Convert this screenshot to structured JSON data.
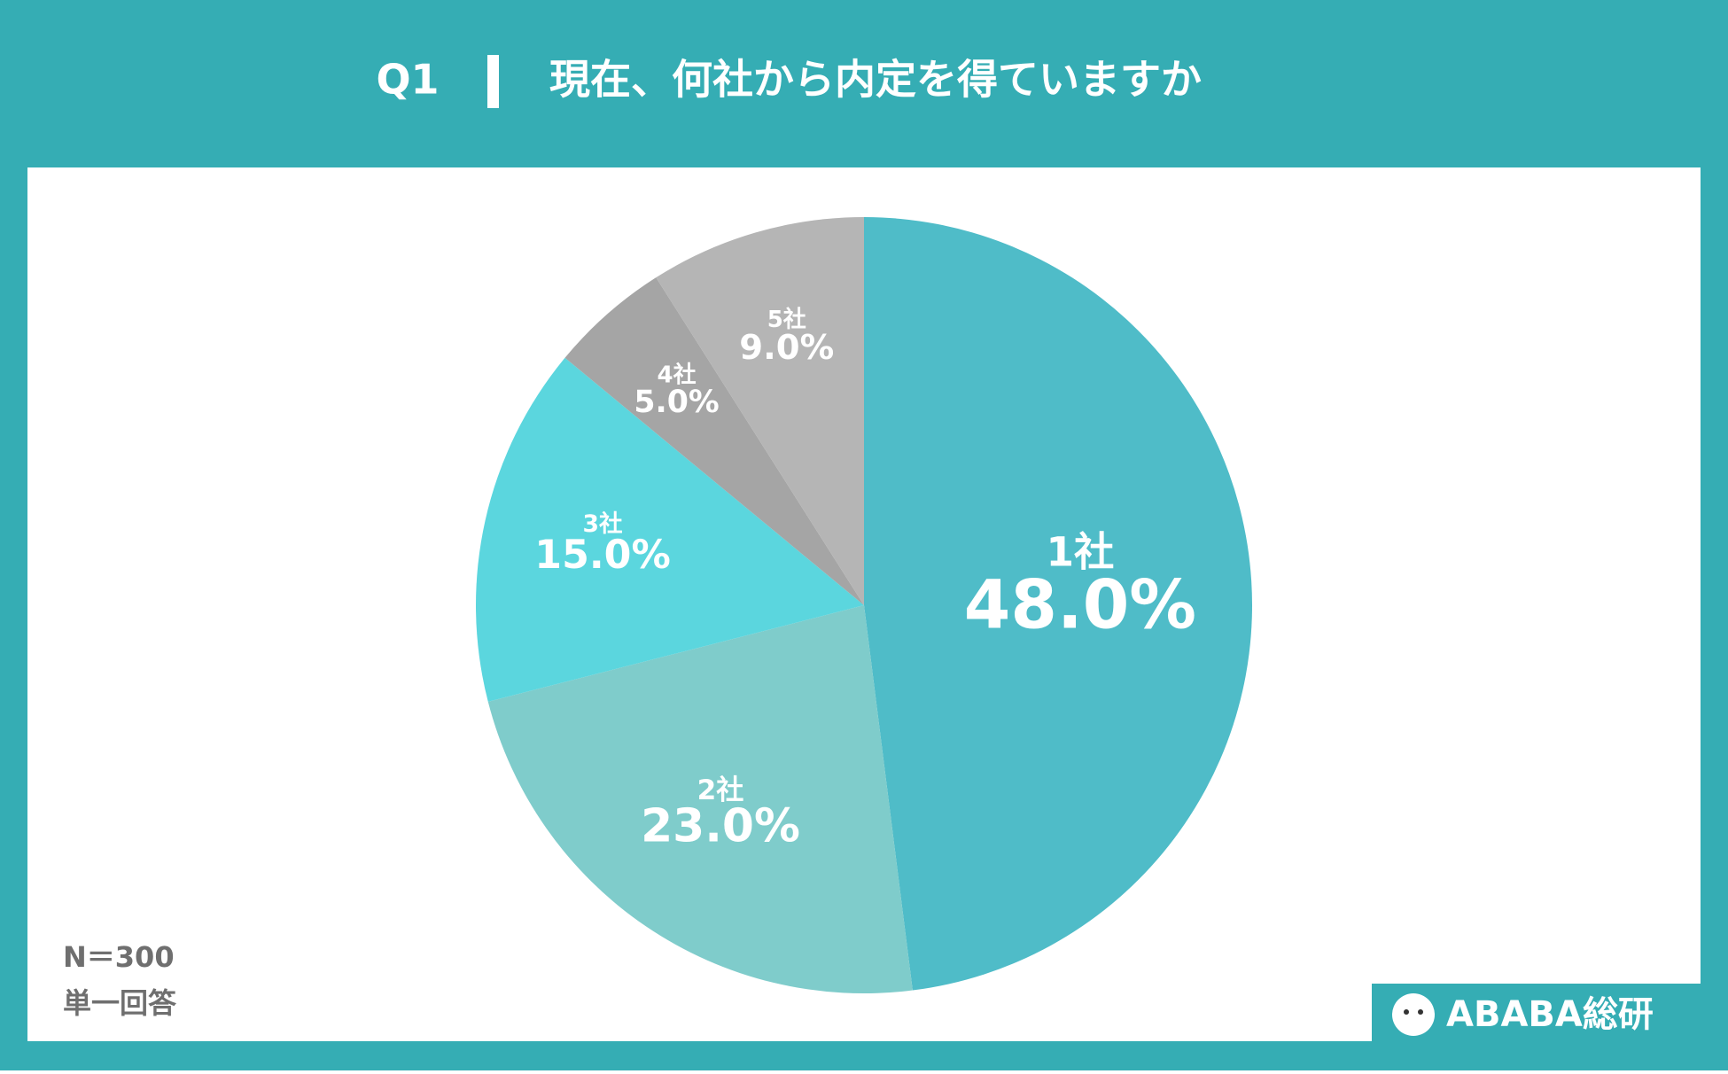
{
  "chart_data": {
    "type": "pie",
    "question": "Q1",
    "title": "現在、何社から内定を得ていますか",
    "categories": [
      "1社",
      "2社",
      "3社",
      "4社",
      "5社"
    ],
    "values": [
      48.0,
      23.0,
      15.0,
      5.0,
      9.0
    ],
    "value_labels": [
      "48.0%",
      "23.0%",
      "15.0%",
      "5.0%",
      "9.0%"
    ],
    "colors": [
      "#4fbcc8",
      "#7fcccb",
      "#5bd6de",
      "#a5a5a5",
      "#b5b5b5"
    ],
    "notes": [
      "N＝300",
      "単一回答"
    ],
    "logo": "ABABA総研"
  }
}
